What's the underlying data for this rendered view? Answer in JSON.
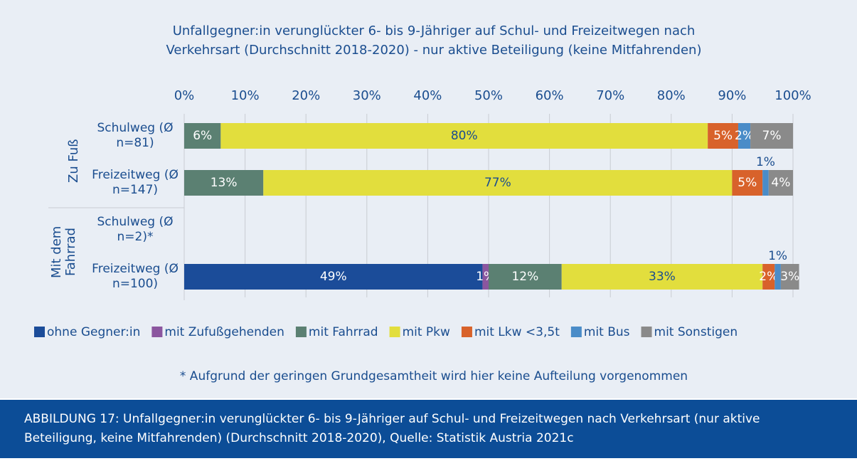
{
  "chart_data": {
    "type": "bar",
    "orientation": "horizontal",
    "stacked": true,
    "title": "Unfallgegner:in verunglückter 6- bis 9-Jähriger auf Schul- und Freizeitwegen nach Verkehrsart (Durchschnitt 2018-2020) - nur aktive Beteiligung (keine Mitfahrenden)",
    "groups": [
      "Zu Fuß",
      "Mit dem Fahrrad"
    ],
    "categories": [
      "Schulweg (Ø n=81)",
      "Freizeitweg (Ø n=147)",
      "Schulweg (Ø n=2)*",
      "Freizeitweg (Ø n=100)"
    ],
    "xlim": [
      0,
      100
    ],
    "xticks": [
      {
        "value": 0,
        "label": "0%"
      },
      {
        "value": 10,
        "label": "10%"
      },
      {
        "value": 20,
        "label": "20%"
      },
      {
        "value": 30,
        "label": "30%"
      },
      {
        "value": 40,
        "label": "40%"
      },
      {
        "value": 50,
        "label": "50%"
      },
      {
        "value": 60,
        "label": "60%"
      },
      {
        "value": 70,
        "label": "70%"
      },
      {
        "value": 80,
        "label": "80%"
      },
      {
        "value": 90,
        "label": "90%"
      },
      {
        "value": 100,
        "label": "100%"
      }
    ],
    "grid": true,
    "legend": "bottom",
    "series": [
      {
        "name": "ohne Gegner:in",
        "color": "#1b4c99",
        "label_color": "#ffffff",
        "values": [
          0,
          0,
          null,
          49
        ],
        "value_labels": [
          null,
          null,
          null,
          "49%"
        ]
      },
      {
        "name": "mit Zufußgehenden",
        "color": "#8b569f",
        "label_color": "#ffffff",
        "values": [
          0,
          0,
          null,
          1
        ],
        "value_labels": [
          null,
          null,
          null,
          "1%"
        ]
      },
      {
        "name": "mit Fahrrad",
        "color": "#5b8072",
        "label_color": "#ffffff",
        "values": [
          6,
          13,
          null,
          12
        ],
        "value_labels": [
          "6%",
          "13%",
          null,
          "12%"
        ]
      },
      {
        "name": "mit Pkw",
        "color": "#e2de3d",
        "label_color": "#1a4d8f",
        "values": [
          80,
          77,
          null,
          33
        ],
        "value_labels": [
          "80%",
          "77%",
          null,
          "33%"
        ]
      },
      {
        "name": "mit Lkw <3,5t",
        "color": "#d8622b",
        "label_color": "#ffffff",
        "values": [
          5,
          5,
          null,
          2
        ],
        "value_labels": [
          "5%",
          "5%",
          null,
          "2%"
        ]
      },
      {
        "name": "mit Bus",
        "color": "#4a8cc8",
        "label_color": "#ffffff",
        "values": [
          2,
          1,
          null,
          1
        ],
        "value_labels": [
          "2%",
          "1%",
          null,
          "1%"
        ]
      },
      {
        "name": "mit Sonstigen",
        "color": "#8a8a8a",
        "label_color": "#ffffff",
        "values": [
          7,
          4,
          null,
          3
        ],
        "value_labels": [
          "7%",
          "4%",
          null,
          "3%"
        ]
      }
    ],
    "footnote": "* Aufgrund der geringen Grundgesamtheit wird hier keine Aufteilung vorgenommen"
  },
  "caption": "ABBILDUNG 17: Unfallgegner:in verunglückter 6- bis 9-Jähriger auf Schul- und Freizeitwegen nach Verkehrsart (nur aktive Beteiligung, keine Mitfahrenden) (Durchschnitt 2018-2020), Quelle: Statistik Austria 2021c"
}
